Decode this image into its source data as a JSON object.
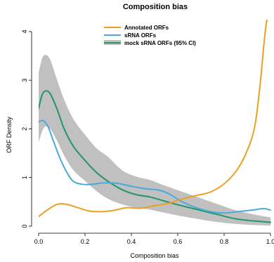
{
  "chart_data": {
    "type": "line",
    "title": "Composition bias",
    "xlabel": "Composition bias",
    "ylabel": "ORF Density",
    "xlim": [
      0,
      1
    ],
    "ylim": [
      0,
      4.1
    ],
    "x_ticks": [
      0.0,
      0.2,
      0.4,
      0.6,
      0.8,
      1.0
    ],
    "x_tick_labels": [
      "0.0",
      "0.2",
      "0.4",
      "0.6",
      "0.8",
      "1.0"
    ],
    "y_ticks": [
      0,
      1,
      2,
      3,
      4
    ],
    "y_tick_labels": [
      "0",
      "1",
      "2",
      "3",
      "4"
    ],
    "grid": false,
    "legend_position": "top-center",
    "legend": [
      {
        "label": "Annotated ORFs",
        "color": "#e8a21e",
        "kind": "line"
      },
      {
        "label": "sRNA ORFs",
        "color": "#4aa8dc",
        "kind": "line"
      },
      {
        "label": "mock sRNA ORFs (95% CI)",
        "color": "#21966b",
        "kind": "band-line"
      }
    ],
    "series": [
      {
        "name": "Annotated ORFs",
        "color": "#e8a21e",
        "x": [
          0.0,
          0.04,
          0.08,
          0.12,
          0.17,
          0.22,
          0.28,
          0.33,
          0.38,
          0.44,
          0.5,
          0.56,
          0.62,
          0.68,
          0.74,
          0.8,
          0.85,
          0.89,
          0.93,
          0.955,
          0.975,
          0.99,
          1.0
        ],
        "y": [
          0.2,
          0.34,
          0.45,
          0.45,
          0.38,
          0.31,
          0.3,
          0.33,
          0.38,
          0.37,
          0.42,
          0.47,
          0.56,
          0.63,
          0.7,
          0.87,
          1.12,
          1.45,
          2.0,
          2.9,
          3.9,
          4.37,
          4.3
        ]
      },
      {
        "name": "sRNA ORFs",
        "color": "#4aa8dc",
        "x": [
          0.0,
          0.02,
          0.04,
          0.06,
          0.09,
          0.12,
          0.15,
          0.19,
          0.23,
          0.28,
          0.34,
          0.4,
          0.46,
          0.52,
          0.56,
          0.62,
          0.68,
          0.74,
          0.8,
          0.86,
          0.92,
          0.97,
          1.0
        ],
        "y": [
          2.14,
          2.17,
          2.05,
          1.8,
          1.42,
          1.12,
          0.92,
          0.86,
          0.86,
          0.89,
          0.88,
          0.82,
          0.77,
          0.74,
          0.67,
          0.5,
          0.38,
          0.3,
          0.27,
          0.3,
          0.33,
          0.36,
          0.33
        ]
      },
      {
        "name": "mock sRNA ORFs (95% CI)",
        "color": "#21966b",
        "band_color": "#c0c0c0",
        "x": [
          0.0,
          0.015,
          0.03,
          0.05,
          0.08,
          0.11,
          0.15,
          0.2,
          0.25,
          0.3,
          0.36,
          0.42,
          0.48,
          0.54,
          0.6,
          0.66,
          0.72,
          0.78,
          0.84,
          0.9,
          0.95,
          1.0
        ],
        "y": [
          2.42,
          2.7,
          2.78,
          2.72,
          2.4,
          2.0,
          1.64,
          1.35,
          1.1,
          0.92,
          0.75,
          0.65,
          0.6,
          0.52,
          0.44,
          0.37,
          0.3,
          0.23,
          0.16,
          0.12,
          0.1,
          0.08
        ],
        "lower": [
          1.72,
          1.95,
          2.05,
          2.0,
          1.75,
          1.45,
          1.15,
          0.93,
          0.72,
          0.56,
          0.45,
          0.38,
          0.34,
          0.28,
          0.22,
          0.17,
          0.12,
          0.08,
          0.05,
          0.03,
          0.02,
          0.01
        ],
        "upper": [
          3.15,
          3.45,
          3.52,
          3.42,
          3.0,
          2.6,
          2.2,
          1.88,
          1.6,
          1.42,
          1.15,
          1.02,
          0.95,
          0.84,
          0.74,
          0.64,
          0.54,
          0.44,
          0.34,
          0.27,
          0.22,
          0.18
        ]
      }
    ]
  }
}
